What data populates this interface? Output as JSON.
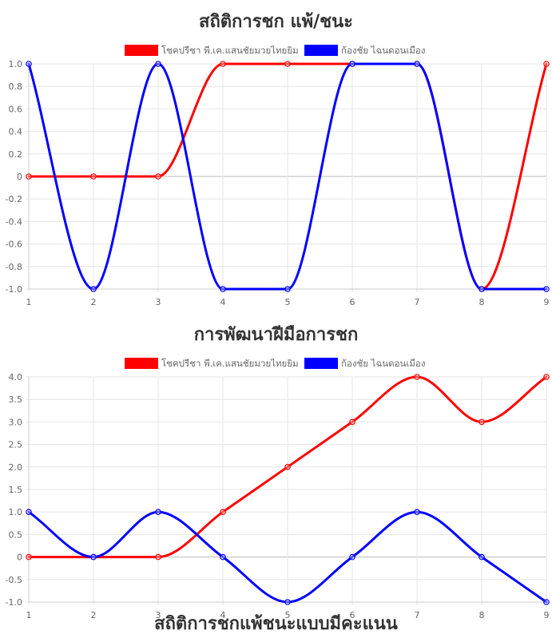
{
  "chart_data": [
    {
      "type": "line",
      "title": "สถิติการชก แพ้/ชนะ",
      "x": [
        1,
        2,
        3,
        4,
        5,
        6,
        7,
        8,
        9
      ],
      "series": [
        {
          "name": "โชคปรีชา พี.เค.แสนชัยมวยไทยยิม",
          "color": "#ff0000",
          "values": [
            0,
            0,
            0,
            1,
            1,
            1,
            1,
            -1,
            1
          ]
        },
        {
          "name": "ก้องชัย ไฉนดอนเมือง",
          "color": "#0000ff",
          "values": [
            1,
            -1,
            1,
            -1,
            -1,
            1,
            1,
            -1,
            -1
          ]
        }
      ],
      "ylim": [
        -1,
        1
      ],
      "yticks": [
        1.0,
        0.8,
        0.6,
        0.4,
        0.2,
        0,
        -0.2,
        -0.4,
        -0.6,
        -0.8,
        -1.0
      ],
      "yticklabels": [
        "1.0",
        "0.8",
        "0.6",
        "0.4",
        "0.2",
        "0",
        "-0.2",
        "-0.4",
        "-0.6",
        "-0.8",
        "-1.0"
      ],
      "xticklabels": [
        "1",
        "2",
        "3",
        "4",
        "5",
        "6",
        "7",
        "8",
        "9"
      ],
      "legend": "top-center",
      "grid": true
    },
    {
      "type": "line",
      "title": "การพัฒนาฝีมือการชก",
      "x": [
        1,
        2,
        3,
        4,
        5,
        6,
        7,
        8,
        9
      ],
      "series": [
        {
          "name": "โชคปรีชา พี.เค.แสนชัยมวยไทยยิม",
          "color": "#ff0000",
          "values": [
            0,
            0,
            0,
            1,
            2,
            3,
            4,
            3,
            4
          ]
        },
        {
          "name": "ก้องชัย ไฉนดอนเมือง",
          "color": "#0000ff",
          "values": [
            1,
            0,
            1,
            0,
            -1,
            0,
            1,
            0,
            -1
          ]
        }
      ],
      "ylim": [
        -1,
        4
      ],
      "yticks": [
        4.0,
        3.5,
        3.0,
        2.5,
        2.0,
        1.5,
        1.0,
        0.5,
        0,
        -0.5,
        -1.0
      ],
      "yticklabels": [
        "4.0",
        "3.5",
        "3.0",
        "2.5",
        "2.0",
        "1.5",
        "1.0",
        "0.5",
        "0",
        "-0.5",
        "-1.0"
      ],
      "xticklabels": [
        "1",
        "2",
        "3",
        "4",
        "5",
        "6",
        "7",
        "8",
        "9"
      ],
      "legend": "top-center",
      "grid": true
    }
  ],
  "footer_title": "สถิติการชกแพ้ชนะแบบมีคะแนน"
}
